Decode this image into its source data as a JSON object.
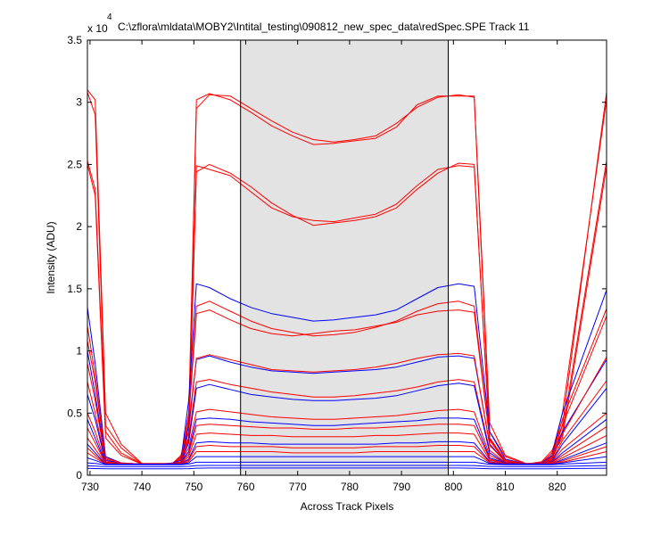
{
  "chart_data": {
    "type": "line",
    "title": "C:\\zflora\\mldata\\MOBY2\\Intital_testing\\090812_new_spec_data\\redSpec.SPE   Track 11",
    "xlabel": "Across Track Pixels",
    "ylabel": "Intensity (ADU)",
    "y_exponent_label": "x 10",
    "y_exponent": "4",
    "xlim": [
      729.5,
      829.5
    ],
    "ylim": [
      0,
      35000
    ],
    "xticks": [
      730,
      740,
      750,
      760,
      770,
      780,
      790,
      800,
      810,
      820
    ],
    "yticks": [
      0,
      5000,
      10000,
      15000,
      20000,
      25000,
      30000,
      35000
    ],
    "ytick_labels": [
      "0",
      "0.5",
      "1",
      "1.5",
      "2",
      "2.5",
      "3",
      "3.5"
    ],
    "shaded_region": {
      "x": [
        759,
        799
      ],
      "color": "#e3e3e3"
    },
    "vertical_lines": [
      759,
      799
    ],
    "grid": false,
    "legend": "none",
    "colors": {
      "red": "#ff0000",
      "blue": "#0000ff"
    },
    "series": [
      {
        "color": "#ff0000",
        "values": [
          30800,
          29000,
          4000,
          2200,
          900,
          900,
          1000,
          1600,
          3500,
          29500,
          30600,
          30500,
          29500,
          28500,
          27600,
          27000,
          26800,
          27000,
          27300,
          28300,
          29600,
          30400,
          30600,
          30400,
          3500,
          1500,
          900,
          1100,
          2000,
          4000,
          30800
        ]
      },
      {
        "color": "#ff0000",
        "values": [
          31000,
          30200,
          5000,
          2500,
          950,
          950,
          950,
          1500,
          4500,
          30200,
          30700,
          30200,
          29200,
          28100,
          27300,
          26600,
          26700,
          26900,
          27100,
          28000,
          29800,
          30500,
          30500,
          30500,
          4200,
          1600,
          950,
          1000,
          1800,
          5000,
          30200
        ]
      },
      {
        "color": "#ff0000",
        "values": [
          25300,
          23000,
          3500,
          1800,
          900,
          900,
          900,
          1400,
          3000,
          24900,
          24600,
          24100,
          22800,
          21500,
          20800,
          20500,
          20400,
          20700,
          21000,
          21800,
          23300,
          24600,
          24900,
          24800,
          3000,
          1200,
          900,
          1000,
          1800,
          3500,
          25300
        ]
      },
      {
        "color": "#ff0000",
        "values": [
          25000,
          22500,
          3000,
          1600,
          900,
          900,
          900,
          1300,
          2800,
          24400,
          25000,
          24300,
          23200,
          21900,
          20900,
          20100,
          20300,
          20500,
          20800,
          21500,
          23000,
          24300,
          25100,
          25000,
          2800,
          1100,
          900,
          950,
          1600,
          3000,
          24800
        ]
      },
      {
        "color": "#0000ff",
        "values": [
          13500,
          9000,
          1500,
          1000,
          900,
          900,
          1000,
          1200,
          6000,
          15400,
          15100,
          14200,
          13500,
          13000,
          12700,
          12400,
          12500,
          12700,
          12900,
          13300,
          14200,
          15100,
          15400,
          15200,
          3500,
          1300,
          900,
          1000,
          1600,
          5000,
          14900
        ]
      },
      {
        "color": "#ff0000",
        "values": [
          12000,
          8000,
          1400,
          1000,
          900,
          900,
          950,
          1100,
          5000,
          13600,
          14000,
          13200,
          12400,
          11800,
          11500,
          11200,
          11300,
          11500,
          11900,
          12400,
          13200,
          13800,
          14000,
          13600,
          3000,
          1200,
          900,
          950,
          1500,
          4500,
          13400
        ]
      },
      {
        "color": "#ff0000",
        "values": [
          10800,
          7500,
          1300,
          950,
          900,
          900,
          950,
          1050,
          4500,
          13000,
          13300,
          12500,
          11800,
          11400,
          11200,
          11400,
          11600,
          11700,
          12000,
          12300,
          12900,
          13200,
          13300,
          13100,
          2900,
          1200,
          900,
          950,
          1400,
          4000,
          12800
        ]
      },
      {
        "color": "#0000ff",
        "values": [
          10000,
          6500,
          1200,
          950,
          900,
          900,
          950,
          1000,
          4000,
          9300,
          9600,
          9100,
          8700,
          8400,
          8300,
          8200,
          8300,
          8400,
          8500,
          8700,
          9100,
          9500,
          9600,
          9400,
          2500,
          1100,
          900,
          950,
          1300,
          3500,
          9300
        ]
      },
      {
        "color": "#ff0000",
        "values": [
          9000,
          6000,
          1100,
          950,
          900,
          900,
          950,
          1000,
          3500,
          9400,
          9700,
          9300,
          8900,
          8500,
          8400,
          8300,
          8400,
          8500,
          8700,
          9000,
          9400,
          9700,
          9800,
          9600,
          2400,
          1100,
          900,
          950,
          1300,
          3300,
          9500
        ]
      },
      {
        "color": "#ff0000",
        "values": [
          7500,
          5000,
          1050,
          950,
          900,
          900,
          950,
          1000,
          3000,
          7500,
          7700,
          7300,
          7000,
          6700,
          6500,
          6300,
          6300,
          6400,
          6600,
          6800,
          7100,
          7500,
          7700,
          7500,
          2000,
          1050,
          900,
          950,
          1200,
          2800,
          7600
        ]
      },
      {
        "color": "#0000ff",
        "values": [
          6500,
          4500,
          1000,
          900,
          900,
          900,
          950,
          1000,
          2600,
          7000,
          7300,
          6900,
          6500,
          6300,
          6100,
          6000,
          6000,
          6100,
          6200,
          6400,
          6800,
          7200,
          7400,
          7200,
          1800,
          1000,
          900,
          950,
          1150,
          2500,
          7000
        ]
      },
      {
        "color": "#ff0000",
        "values": [
          5000,
          3500,
          1000,
          900,
          900,
          900,
          950,
          1000,
          2200,
          5100,
          5300,
          5100,
          4900,
          4700,
          4600,
          4500,
          4500,
          4600,
          4700,
          4800,
          5000,
          5200,
          5300,
          5100,
          1600,
          1000,
          900,
          950,
          1100,
          2100,
          5000
        ]
      },
      {
        "color": "#0000ff",
        "values": [
          4500,
          3000,
          950,
          900,
          900,
          900,
          950,
          1000,
          1900,
          4500,
          4600,
          4500,
          4300,
          4200,
          4100,
          4000,
          4000,
          4100,
          4200,
          4300,
          4400,
          4600,
          4600,
          4500,
          1400,
          1000,
          900,
          950,
          1050,
          1800,
          4500
        ]
      },
      {
        "color": "#ff0000",
        "values": [
          3800,
          2600,
          950,
          900,
          900,
          900,
          950,
          1000,
          1700,
          4000,
          4100,
          4000,
          3900,
          3800,
          3800,
          3700,
          3700,
          3800,
          3800,
          3900,
          4000,
          4100,
          4100,
          4000,
          1300,
          950,
          900,
          950,
          1050,
          1600,
          3900
        ]
      },
      {
        "color": "#ff0000",
        "values": [
          3000,
          2100,
          950,
          900,
          900,
          900,
          900,
          950,
          1500,
          3300,
          3400,
          3300,
          3200,
          3200,
          3100,
          3100,
          3100,
          3100,
          3200,
          3200,
          3300,
          3400,
          3400,
          3300,
          1200,
          950,
          900,
          900,
          1000,
          1400,
          3200
        ]
      },
      {
        "color": "#0000ff",
        "values": [
          2500,
          1800,
          900,
          900,
          900,
          900,
          900,
          950,
          1300,
          2600,
          2700,
          2600,
          2600,
          2500,
          2500,
          2500,
          2500,
          2500,
          2500,
          2600,
          2600,
          2700,
          2700,
          2600,
          1100,
          900,
          900,
          900,
          950,
          1250,
          2600
        ]
      },
      {
        "color": "#ff0000",
        "values": [
          2200,
          1600,
          900,
          900,
          900,
          900,
          900,
          950,
          1200,
          2300,
          2400,
          2300,
          2300,
          2300,
          2200,
          2200,
          2200,
          2200,
          2300,
          2300,
          2300,
          2400,
          2400,
          2300,
          1050,
          900,
          900,
          900,
          950,
          1150,
          2300
        ]
      },
      {
        "color": "#ff0000",
        "values": [
          1800,
          1400,
          900,
          900,
          900,
          900,
          900,
          900,
          1100,
          1900,
          1900,
          1900,
          1900,
          1900,
          1800,
          1800,
          1800,
          1800,
          1900,
          1900,
          1900,
          1900,
          1900,
          1900,
          1000,
          900,
          900,
          900,
          900,
          1050,
          1900
        ]
      },
      {
        "color": "#0000ff",
        "values": [
          1400,
          1200,
          900,
          900,
          900,
          900,
          900,
          900,
          1000,
          1500,
          1500,
          1500,
          1500,
          1500,
          1500,
          1500,
          1500,
          1500,
          1500,
          1500,
          1500,
          1500,
          1500,
          1500,
          950,
          900,
          900,
          900,
          900,
          1000,
          1500
        ]
      },
      {
        "color": "#0000ff",
        "values": [
          1000,
          950,
          850,
          850,
          850,
          850,
          850,
          850,
          900,
          1050,
          1050,
          1050,
          1050,
          1050,
          1050,
          1050,
          1050,
          1050,
          1050,
          1050,
          1050,
          1050,
          1050,
          1050,
          880,
          850,
          850,
          850,
          850,
          900,
          1050
        ]
      },
      {
        "color": "#0000ff",
        "values": [
          750,
          730,
          700,
          700,
          700,
          700,
          700,
          700,
          720,
          780,
          790,
          790,
          790,
          790,
          790,
          790,
          790,
          790,
          790,
          790,
          790,
          790,
          790,
          780,
          710,
          700,
          700,
          700,
          700,
          720,
          780
        ]
      },
      {
        "color": "#0000ff",
        "values": [
          550,
          540,
          520,
          520,
          520,
          520,
          520,
          520,
          530,
          570,
          580,
          580,
          580,
          580,
          580,
          580,
          580,
          580,
          580,
          580,
          580,
          580,
          580,
          570,
          525,
          520,
          520,
          520,
          520,
          530,
          570
        ]
      }
    ],
    "x": [
      729.5,
      731,
      733,
      736,
      740,
      744,
      746,
      747.5,
      749,
      750.5,
      753,
      757,
      761,
      765,
      769,
      773,
      777,
      781,
      785,
      789,
      793,
      797,
      801,
      804,
      807,
      810,
      814,
      817,
      819,
      821,
      829.5
    ]
  }
}
